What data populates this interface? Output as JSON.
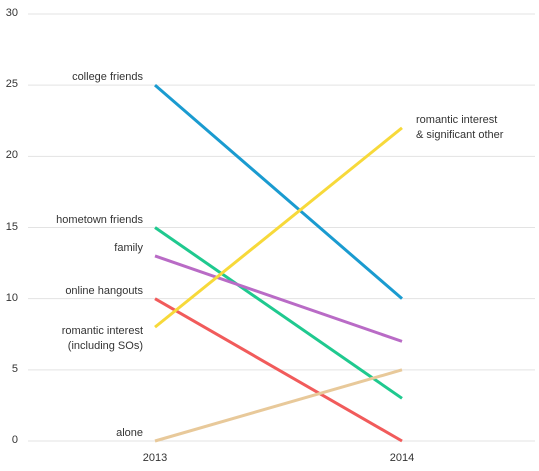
{
  "chart_data": {
    "type": "slope",
    "categories": [
      "2013",
      "2014"
    ],
    "ylim": [
      0,
      30
    ],
    "yticks": [
      0,
      5,
      10,
      15,
      20,
      25,
      30
    ],
    "grid": true,
    "series": [
      {
        "name": "college friends",
        "color": "#1a9bd0",
        "values": [
          25,
          10
        ]
      },
      {
        "name": "hometown friends",
        "color": "#1fc98f",
        "values": [
          15,
          3
        ]
      },
      {
        "name": "family",
        "color": "#b96bc6",
        "values": [
          13,
          7
        ]
      },
      {
        "name": "online hangouts",
        "color": "#f15b5b",
        "values": [
          10,
          0
        ]
      },
      {
        "name": "romantic interest\n(including SOs)",
        "end_label": "romantic interest\n& significant other",
        "color": "#f7d93a",
        "values": [
          8,
          22
        ]
      },
      {
        "name": "alone",
        "color": "#e8c99a",
        "values": [
          0,
          5
        ]
      }
    ]
  }
}
